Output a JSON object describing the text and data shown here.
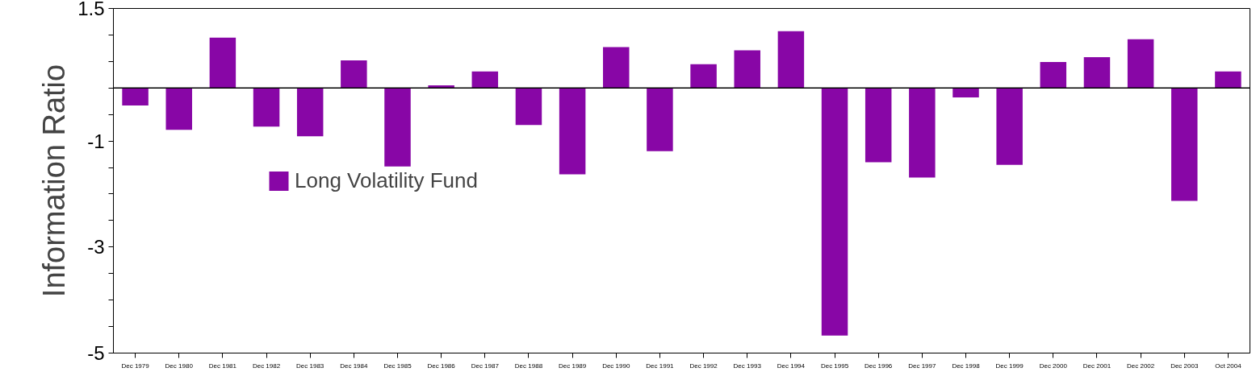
{
  "chart_data": {
    "type": "bar",
    "ylabel": "Information Ratio",
    "categories": [
      "Dec 1979",
      "Dec 1980",
      "Dec 1981",
      "Dec 1982",
      "Dec 1983",
      "Dec 1984",
      "Dec 1985",
      "Dec 1986",
      "Dec 1987",
      "Dec 1988",
      "Dec 1989",
      "Dec 1990",
      "Dec 1991",
      "Dec 1992",
      "Dec 1993",
      "Dec 1994",
      "Dec 1995",
      "Dec 1996",
      "Dec 1997",
      "Dec 1998",
      "Dec 1999",
      "Dec 2000",
      "Dec 2001",
      "Dec 2002",
      "Dec 2003",
      "Oct 2004"
    ],
    "series": [
      {
        "name": "Long Volatility Fund",
        "color": "#8806a6",
        "values": [
          -0.33,
          -0.79,
          0.95,
          -0.73,
          -0.91,
          0.52,
          -1.48,
          0.05,
          0.31,
          -0.7,
          -1.63,
          0.77,
          -1.19,
          0.45,
          0.71,
          1.07,
          -4.67,
          -1.4,
          -1.69,
          -0.18,
          -1.45,
          0.49,
          0.58,
          0.92,
          -2.13,
          0.31
        ]
      }
    ],
    "ylim": [
      -5,
      1.5
    ],
    "yticks": [
      {
        "value": -5,
        "label": "-5"
      },
      {
        "value": -4.5,
        "label": null
      },
      {
        "value": -4,
        "label": null
      },
      {
        "value": -3.5,
        "label": null
      },
      {
        "value": -3,
        "label": "-3"
      },
      {
        "value": -2.5,
        "label": null
      },
      {
        "value": -2,
        "label": null
      },
      {
        "value": -1.5,
        "label": null
      },
      {
        "value": -1,
        "label": "-1"
      },
      {
        "value": -0.5,
        "label": null
      },
      {
        "value": 0,
        "label": null
      },
      {
        "value": 0.5,
        "label": null
      },
      {
        "value": 1,
        "label": null
      },
      {
        "value": 1.5,
        "label": "1.5"
      }
    ],
    "ref_lines": [
      {
        "axis": "y",
        "value": 0,
        "color": "#000000"
      }
    ],
    "grid": false,
    "legend": "left"
  }
}
